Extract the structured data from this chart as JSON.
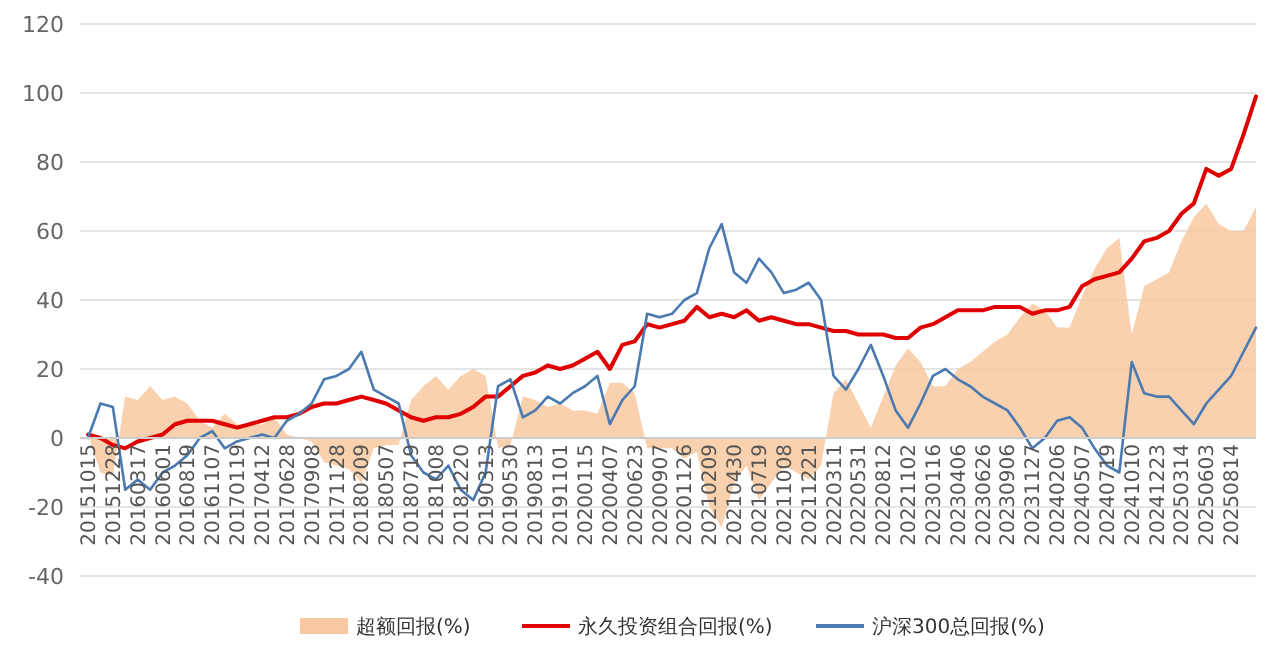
{
  "chart_data": {
    "type": "line",
    "categories": [
      "20151015",
      null,
      "20151228",
      null,
      "20160317",
      null,
      "20160601",
      null,
      "20160819",
      null,
      "20161107",
      null,
      "20170119",
      null,
      "20170412",
      null,
      "20170628",
      null,
      "20170908",
      null,
      "20171128",
      null,
      "20180209",
      null,
      "20180507",
      null,
      "20180719",
      null,
      "20181008",
      null,
      "20181220",
      null,
      "20190313",
      null,
      "20190530",
      null,
      "20190813",
      null,
      "20191101",
      null,
      "20200115",
      null,
      "20200407",
      null,
      "20200623",
      null,
      "20200907",
      null,
      "20201126",
      null,
      "20210209",
      null,
      "20210430",
      null,
      "20210719",
      null,
      "20211008",
      null,
      "20211221",
      null,
      "20220311",
      null,
      "20220531",
      null,
      "20220812",
      null,
      "20221102",
      null,
      "20230116",
      null,
      "20230406",
      null,
      "20230626",
      null,
      "20230906",
      null,
      "20231127",
      null,
      "20240206",
      null,
      "20240507",
      null,
      "20240719",
      null,
      "20241010",
      null,
      "20241223",
      null,
      "20250314",
      null,
      "20250603",
      null,
      "20250814",
      null,
      null
    ],
    "series": [
      {
        "name": "超额回报(%)",
        "type": "area",
        "color": "#f8c9a0",
        "values": [
          1,
          -10,
          -11,
          12,
          11,
          15,
          11,
          12,
          10,
          5,
          3,
          7,
          4,
          4,
          4,
          6,
          1,
          0,
          -1,
          -7,
          -8,
          -9,
          -13,
          -3,
          -2,
          -2,
          11,
          15,
          18,
          14,
          18,
          20,
          18,
          -3,
          -2,
          12,
          11,
          9,
          10,
          8,
          8,
          7,
          16,
          16,
          13,
          -3,
          -3,
          -3,
          -6,
          -4,
          -20,
          -26,
          -13,
          -8,
          -18,
          -13,
          -8,
          -10,
          -12,
          -8,
          13,
          17,
          10,
          3,
          12,
          21,
          26,
          22,
          15,
          15,
          20,
          22,
          25,
          28,
          30,
          35,
          39,
          37,
          32,
          32,
          41,
          49,
          55,
          58,
          30,
          44,
          46,
          48,
          57,
          64,
          68,
          62,
          60,
          60,
          67
        ]
      },
      {
        "name": "永久投资组合回报(%)",
        "color": "#e00000",
        "values": [
          1,
          0,
          -2,
          -3,
          -1,
          0,
          1,
          4,
          5,
          5,
          5,
          4,
          3,
          4,
          5,
          6,
          6,
          7,
          9,
          10,
          10,
          11,
          12,
          11,
          10,
          8,
          6,
          5,
          6,
          6,
          7,
          9,
          12,
          12,
          15,
          18,
          19,
          21,
          20,
          21,
          23,
          25,
          20,
          27,
          28,
          33,
          32,
          33,
          34,
          38,
          35,
          36,
          35,
          37,
          34,
          35,
          34,
          33,
          33,
          32,
          31,
          31,
          30,
          30,
          30,
          29,
          29,
          32,
          33,
          35,
          37,
          37,
          37,
          38,
          38,
          38,
          36,
          37,
          37,
          38,
          44,
          46,
          47,
          48,
          52,
          57,
          58,
          60,
          65,
          68,
          78,
          76,
          78,
          88,
          99
        ]
      },
      {
        "name": "沪深300总回报(%)",
        "color": "#4a7ab0",
        "values": [
          0,
          10,
          9,
          -15,
          -12,
          -15,
          -10,
          -8,
          -5,
          0,
          2,
          -3,
          -1,
          0,
          1,
          0,
          5,
          7,
          10,
          17,
          18,
          20,
          25,
          14,
          12,
          10,
          -5,
          -10,
          -12,
          -8,
          -15,
          -18,
          -10,
          15,
          17,
          6,
          8,
          12,
          10,
          13,
          15,
          18,
          4,
          11,
          15,
          36,
          35,
          36,
          40,
          42,
          55,
          62,
          48,
          45,
          52,
          48,
          42,
          43,
          45,
          40,
          18,
          14,
          20,
          27,
          18,
          8,
          3,
          10,
          18,
          20,
          17,
          15,
          12,
          10,
          8,
          3,
          -3,
          0,
          5,
          6,
          3,
          -3,
          -8,
          -10,
          22,
          13,
          12,
          12,
          8,
          4,
          10,
          14,
          18,
          25,
          32
        ]
      }
    ],
    "ylim": [
      -40,
      120
    ],
    "yticks": [
      -40,
      -20,
      0,
      20,
      40,
      60,
      80,
      100,
      120
    ],
    "grid": "y",
    "legend": "bottom",
    "line_style": "solid",
    "marker": "none"
  }
}
